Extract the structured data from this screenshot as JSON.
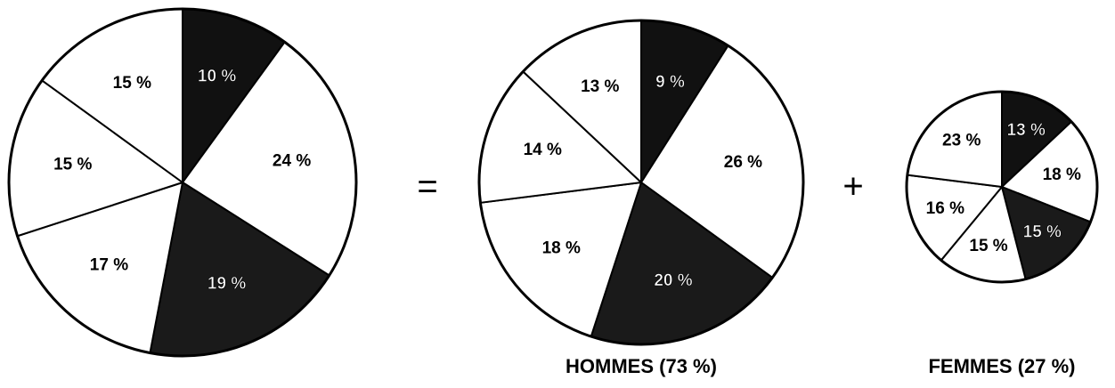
{
  "chart_data": [
    {
      "type": "pie",
      "categories": [
        null,
        null,
        null,
        null,
        null,
        null
      ],
      "values": [
        10,
        24,
        19,
        17,
        15,
        15
      ],
      "value_labels": [
        "10 %",
        "24 %",
        "19 %",
        "17 %",
        "15 %",
        "15 %"
      ],
      "colors": [
        "#111111",
        "#ffffff",
        "#1a1a1a",
        "#ffffff",
        "#ffffff",
        "#ffffff"
      ]
    },
    {
      "type": "pie",
      "title": "HOMMES (73 %)",
      "categories": [
        null,
        null,
        null,
        null,
        null,
        null
      ],
      "values": [
        9,
        26,
        20,
        18,
        14,
        13
      ],
      "value_labels": [
        "9 %",
        "26 %",
        "20 %",
        "18 %",
        "14 %",
        "13 %"
      ],
      "colors": [
        "#111111",
        "#ffffff",
        "#1a1a1a",
        "#ffffff",
        "#ffffff",
        "#ffffff"
      ]
    },
    {
      "type": "pie",
      "title": "FEMMES (27 %)",
      "categories": [
        null,
        null,
        null,
        null,
        null,
        null
      ],
      "values": [
        13,
        18,
        15,
        15,
        16,
        23
      ],
      "value_labels": [
        "13 %",
        "18 %",
        "15 %",
        "15 %",
        "16 %",
        "23 %"
      ],
      "colors": [
        "#111111",
        "#ffffff",
        "#1a1a1a",
        "#ffffff",
        "#ffffff",
        "#ffffff"
      ]
    }
  ],
  "operators": [
    "=",
    "+"
  ]
}
